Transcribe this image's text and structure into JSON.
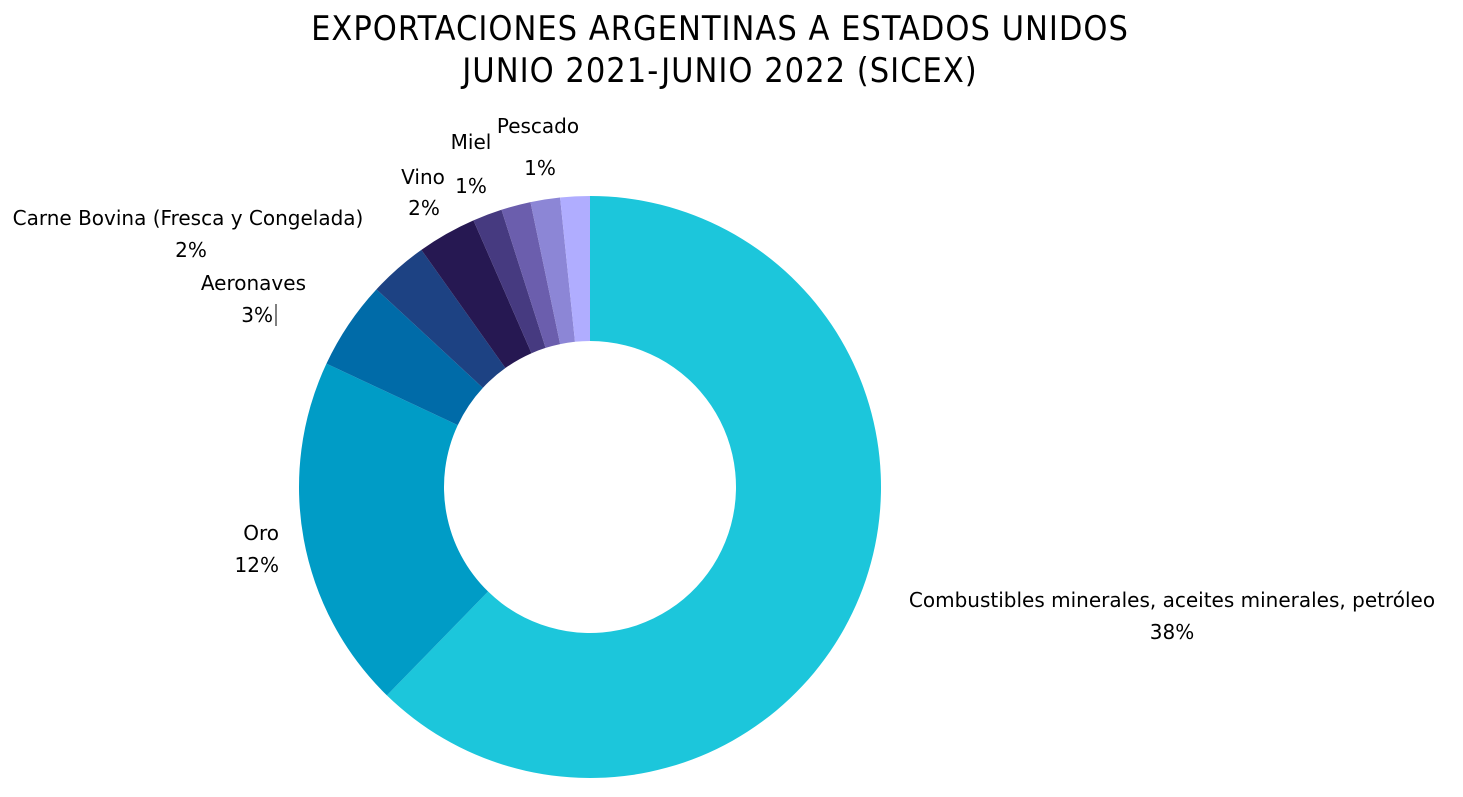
{
  "chart_data": {
    "type": "pie",
    "variant": "donut",
    "title_lines": [
      "EXPORTACIONES ARGENTINAS A ESTADOS UNIDOS",
      "JUNIO 2021-JUNIO 2022 (SICEX)"
    ],
    "slices": [
      {
        "name": "Combustibles minerales, aceites minerales, petróleo",
        "label": "38%",
        "value": 38,
        "color": "#1CC6DB"
      },
      {
        "name": "Oro",
        "label": "12%",
        "value": 12,
        "color": "#009CC6"
      },
      {
        "name": "Aeronaves",
        "label": "3%",
        "value": 3,
        "color": "#006BA8"
      },
      {
        "name": "Carne Bovina (Fresca y Congelada)",
        "label": "2%",
        "value": 2,
        "color": "#1D4283"
      },
      {
        "name": "Vino",
        "label": "2%",
        "value": 2,
        "color": "#261852"
      },
      {
        "name": "Miel",
        "label": "1%",
        "value": 1,
        "color": "#463A80"
      },
      {
        "name": "",
        "label": "",
        "value": 1,
        "color": "#6B5EAD"
      },
      {
        "name": "",
        "label": "",
        "value": 1,
        "color": "#8C86D6"
      },
      {
        "name": "Pescado",
        "label": "1%",
        "value": 1,
        "color": "#B0ADFF"
      }
    ],
    "start": "12 o'clock",
    "direction": "clockwise",
    "legend": "none"
  }
}
